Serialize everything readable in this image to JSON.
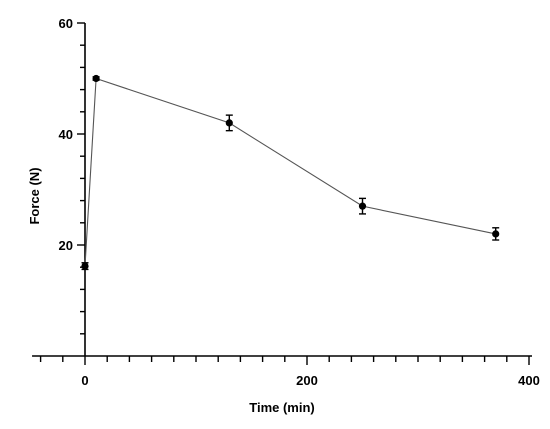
{
  "chart_data": {
    "type": "line",
    "xlabel": "Time (min)",
    "ylabel": "Force (N)",
    "xlim": [
      -45,
      400
    ],
    "ylim": [
      0,
      60
    ],
    "xticks": [
      0,
      200,
      400
    ],
    "yticks": [
      20,
      40,
      60
    ],
    "series": [
      {
        "x": [
          0,
          10,
          130,
          250,
          370
        ],
        "y": [
          16.2,
          50,
          42,
          27,
          22
        ],
        "yerr": [
          0.6,
          0.3,
          1.4,
          1.4,
          1.1
        ]
      }
    ]
  }
}
